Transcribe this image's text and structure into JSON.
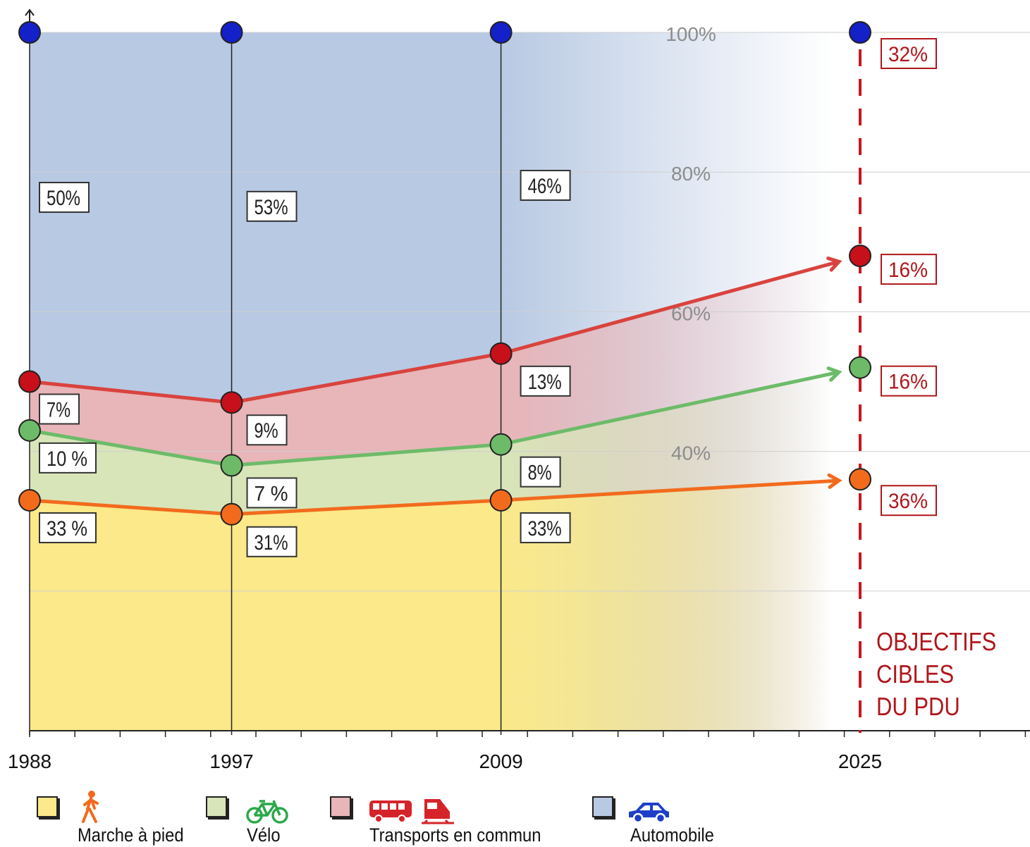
{
  "chart_data": {
    "type": "area",
    "x": [
      1988,
      1997,
      2009
    ],
    "x_target": 2025,
    "x_ticks": [
      "1988",
      "1997",
      "2009",
      "2025"
    ],
    "y_ticks": [
      "100%",
      "80%",
      "60%",
      "40%"
    ],
    "ylim": [
      0,
      100
    ],
    "grid": true,
    "series": [
      {
        "name": "Marche à pied",
        "values": [
          33,
          31,
          33
        ],
        "target": 36,
        "labels": [
          "33 %",
          "31%",
          "33%"
        ],
        "target_label": "36%",
        "line_color": "#f26b1d",
        "fill_color": "#fbe98a"
      },
      {
        "name": "Vélo",
        "values": [
          10,
          7,
          8
        ],
        "target": 16,
        "labels": [
          "10 %",
          "7 %",
          "8%"
        ],
        "target_label": "16%",
        "line_color": "#6dbb69",
        "fill_color": "#d8e5b9"
      },
      {
        "name": "Transports en commun",
        "values": [
          7,
          9,
          13
        ],
        "target": 16,
        "labels": [
          "7%",
          "9%",
          "13%"
        ],
        "target_label": "16%",
        "line_color": "#d9433e",
        "fill_color": "#e8b5b8"
      },
      {
        "name": "Automobile",
        "values": [
          50,
          53,
          46
        ],
        "target": 32,
        "labels": [
          "50%",
          "53%",
          "46%"
        ],
        "target_label": "32%",
        "line_color": "#1420c8",
        "fill_color": "#b8c9e3"
      }
    ],
    "annotation": [
      "OBJECTIFS",
      "CIBLES",
      "DU PDU"
    ],
    "annotation_color": "#b0161b"
  },
  "legend": {
    "items": [
      {
        "label": "Marche à pied",
        "icon": "pedestrian-icon",
        "color": "#fbe98a",
        "icon_color": "#f26b1d"
      },
      {
        "label": "Vélo",
        "icon": "bicycle-icon",
        "color": "#d8e5b9",
        "icon_color": "#2aa84a"
      },
      {
        "label": "Transports en commun",
        "icon": "bus-train-icon",
        "color": "#e8b5b8",
        "icon_color": "#d6232a"
      },
      {
        "label": "Automobile",
        "icon": "car-icon",
        "color": "#b8c9e3",
        "icon_color": "#1f3fc8"
      }
    ]
  }
}
